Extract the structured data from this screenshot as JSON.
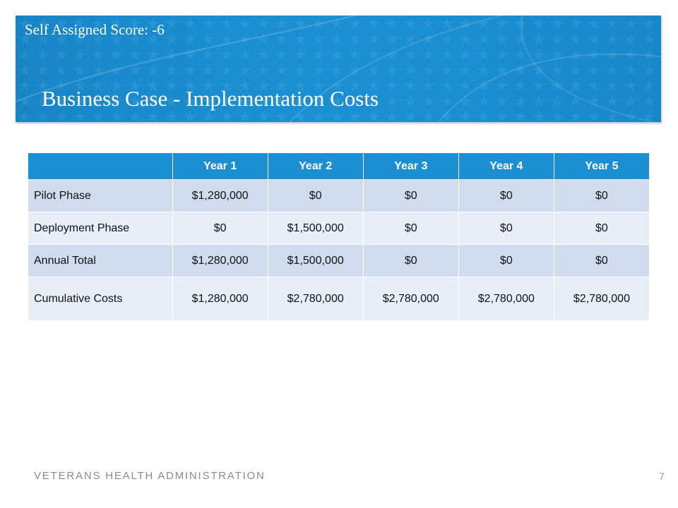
{
  "header": {
    "score_label": "Self Assigned Score:  -6",
    "title": "Business Case - Implementation Costs"
  },
  "table": {
    "columns": [
      "",
      "Year 1",
      "Year 2",
      "Year 3",
      "Year 4",
      "Year 5"
    ],
    "rows": [
      {
        "label": "Pilot Phase",
        "values": [
          "$1,280,000",
          "$0",
          "$0",
          "$0",
          "$0"
        ]
      },
      {
        "label": "Deployment Phase",
        "values": [
          "$0",
          "$1,500,000",
          "$0",
          "$0",
          "$0"
        ]
      },
      {
        "label": "Annual Total",
        "values": [
          "$1,280,000",
          "$1,500,000",
          "$0",
          "$0",
          "$0"
        ]
      },
      {
        "label": "Cumulative Costs",
        "values": [
          "$1,280,000",
          "$2,780,000",
          "$2,780,000",
          "$2,780,000",
          "$2,780,000"
        ]
      }
    ]
  },
  "footer": {
    "org": "VETERANS HEALTH ADMINISTRATION",
    "page": "7"
  },
  "colors": {
    "banner": "#1b8fd1",
    "header_row": "#1b8fd1",
    "row_dark": "#cfdcee",
    "row_light": "#e8eef7"
  }
}
